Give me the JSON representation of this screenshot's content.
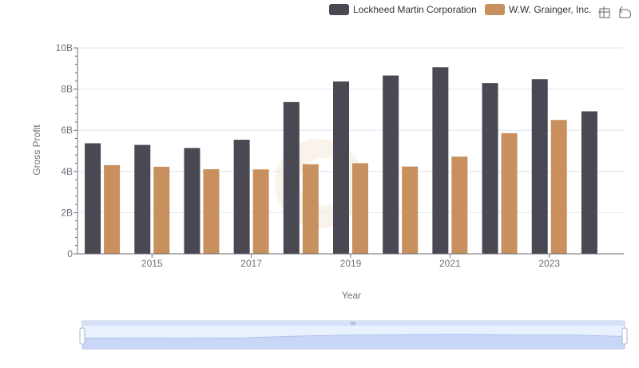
{
  "chart_data": {
    "type": "bar",
    "title": "",
    "xlabel": "Year",
    "ylabel": "Gross Profit",
    "x": [
      2014,
      2015,
      2016,
      2017,
      2018,
      2019,
      2020,
      2021,
      2022,
      2023,
      2024
    ],
    "x_tick_labels": [
      "2015",
      "2017",
      "2019",
      "2021",
      "2023"
    ],
    "y_tick_labels": [
      "0",
      "2B",
      "4B",
      "6B",
      "8B",
      "10B"
    ],
    "ylim": [
      0,
      10000000000
    ],
    "grid": true,
    "legend_position": "top-right",
    "series": [
      {
        "name": "Lockheed Martin Corporation",
        "color": "#4a4953",
        "values": [
          5370000000,
          5290000000,
          5140000000,
          5540000000,
          7370000000,
          8370000000,
          8660000000,
          9060000000,
          8290000000,
          8480000000,
          6920000000
        ]
      },
      {
        "name": "W.W. Grainger, Inc.",
        "color": "#c8905e",
        "values": [
          4310000000,
          4230000000,
          4110000000,
          4100000000,
          4350000000,
          4400000000,
          4240000000,
          4720000000,
          5860000000,
          6500000000,
          null
        ]
      }
    ]
  },
  "toolbox": {
    "icons": [
      "zoom-icon",
      "restore-icon"
    ]
  },
  "datazoom": {
    "start_percent": 0,
    "end_percent": 100
  }
}
